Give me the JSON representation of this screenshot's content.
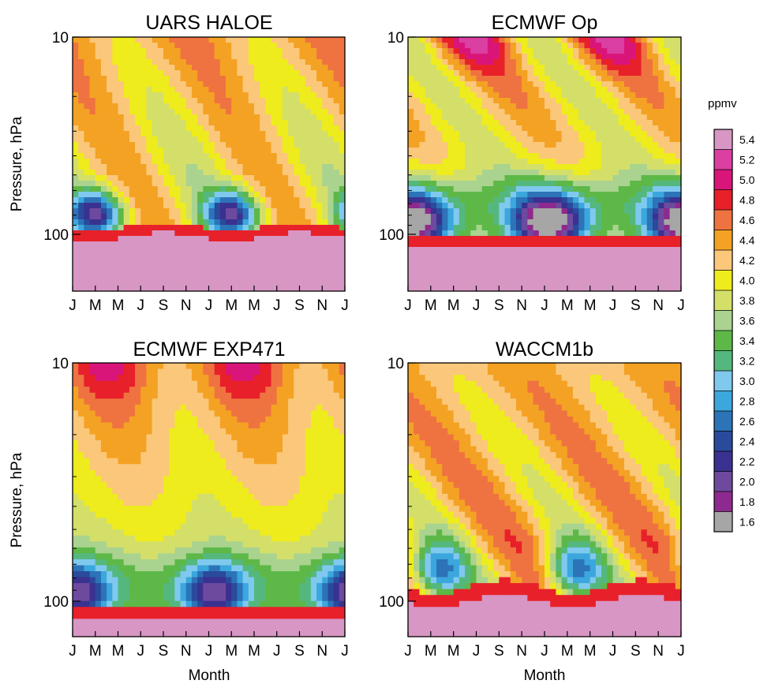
{
  "figure": {
    "month_ticks": [
      "J",
      "M",
      "M",
      "J",
      "S",
      "N",
      "J",
      "M",
      "M",
      "J",
      "S",
      "N",
      "J"
    ],
    "xlabel": "Month",
    "ylabel": "Pressure, hPa",
    "yticks": [
      "10",
      "100"
    ]
  },
  "colorbar": {
    "unit": "ppmv",
    "levels": [
      "5.4",
      "5.2",
      "5.0",
      "4.8",
      "4.6",
      "4.4",
      "4.2",
      "4.0",
      "3.8",
      "3.6",
      "3.4",
      "3.2",
      "3.0",
      "2.8",
      "2.6",
      "2.4",
      "2.2",
      "2.0",
      "1.8",
      "1.6"
    ],
    "colors": [
      "#d896c4",
      "#db3fa2",
      "#d9157a",
      "#e8202a",
      "#ef7340",
      "#f4a224",
      "#fbc77a",
      "#eeec1c",
      "#d4df6a",
      "#a9d38f",
      "#5db848",
      "#54b87e",
      "#7fc9ef",
      "#3ba7dc",
      "#2c73b8",
      "#2a4a9c",
      "#3a3190",
      "#6e4a9e",
      "#8e2a8f",
      "#a6a6a6"
    ]
  },
  "chart_data": [
    {
      "type": "heatmap",
      "title": "UARS HALOE",
      "xlabel": "",
      "ylabel": "Pressure, hPa",
      "x_ticks": [
        "J",
        "M",
        "M",
        "J",
        "S",
        "N",
        "J",
        "M",
        "M",
        "J",
        "S",
        "N",
        "J"
      ],
      "y_ticks": [
        "10",
        "100"
      ],
      "y_scale": "log",
      "values_range_ppmv": [
        1.8,
        5.4
      ],
      "features": [
        {
          "month": "M",
          "pressure_hPa": 80,
          "value_ppmv": 2.4,
          "note": "minimum, repeated in second year"
        },
        {
          "month": "S",
          "pressure_hPa": 110,
          "value_ppmv": 5.4,
          "note": "high values near 100 hPa and below"
        }
      ]
    },
    {
      "type": "heatmap",
      "title": "ECMWF Op",
      "xlabel": "",
      "ylabel": "",
      "x_ticks": [
        "J",
        "M",
        "M",
        "J",
        "S",
        "N",
        "J",
        "M",
        "M",
        "J",
        "S",
        "N",
        "J"
      ],
      "y_ticks": [
        "10",
        "100"
      ],
      "y_scale": "log",
      "values_range_ppmv": [
        1.8,
        5.4
      ],
      "features": [
        {
          "month": "J",
          "pressure_hPa": 95,
          "value_ppmv": 1.8,
          "note": "minimum"
        },
        {
          "month": "J",
          "pressure_hPa": 10,
          "value_ppmv": 4.8,
          "note": "maximum near top"
        }
      ]
    },
    {
      "type": "heatmap",
      "title": "ECMWF EXP471",
      "xlabel": "",
      "ylabel": "Pressure, hPa",
      "x_ticks": [
        "J",
        "M",
        "M",
        "J",
        "S",
        "N",
        "J",
        "M",
        "M",
        "J",
        "S",
        "N",
        "J"
      ],
      "y_ticks": [
        "10",
        "100"
      ],
      "y_scale": "log",
      "values_range_ppmv": [
        2.0,
        5.4
      ],
      "features": [
        {
          "month": "J",
          "pressure_hPa": 90,
          "value_ppmv": 2.0,
          "note": "minimum"
        },
        {
          "month": "M",
          "pressure_hPa": 10,
          "value_ppmv": 4.8,
          "note": "maximum near top"
        }
      ]
    },
    {
      "type": "heatmap",
      "title": "WACCM1b",
      "xlabel": "Month",
      "ylabel": "",
      "x_ticks": [
        "J",
        "M",
        "M",
        "J",
        "S",
        "N",
        "J",
        "M",
        "M",
        "J",
        "S",
        "N",
        "J"
      ],
      "y_ticks": [
        "10",
        "100"
      ],
      "y_scale": "log",
      "values_range_ppmv": [
        2.2,
        5.4
      ],
      "features": [
        {
          "month": "M",
          "pressure_hPa": 85,
          "value_ppmv": 2.2,
          "note": "minimum"
        },
        {
          "month": "S",
          "pressure_hPa": 100,
          "value_ppmv": 5.2,
          "note": "high values near 100 hPa"
        }
      ]
    }
  ]
}
